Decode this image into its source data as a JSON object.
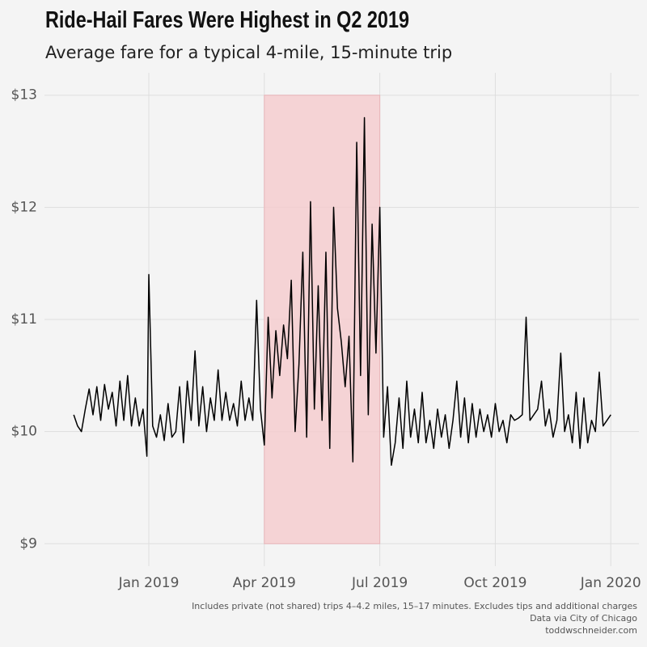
{
  "chart_data": {
    "type": "line",
    "title": "Ride-Hail Fares Were Highest in Q2 2019",
    "subtitle": "Average fare for a typical 4-mile, 15-minute trip",
    "notes": [
      "Includes private (not shared) trips 4–4.2 miles, 15–17 minutes. Excludes tips and additional charges",
      "Data via City of Chicago",
      "toddwschneider.com"
    ],
    "color": "#000000",
    "highlight": {
      "x": [
        3,
        6
      ],
      "color": "#f4cccf"
    },
    "grid": true,
    "xlim": [
      -2.71,
      12.73
    ],
    "xticks": [
      {
        "value": 0,
        "label": "Jan 2019"
      },
      {
        "value": 3,
        "label": "Apr 2019"
      },
      {
        "value": 6,
        "label": "Jul 2019"
      },
      {
        "value": 9,
        "label": "Oct 2019"
      },
      {
        "value": 12,
        "label": "Jan 2020"
      }
    ],
    "ylim": [
      8.8,
      13.2
    ],
    "yticks": [
      {
        "value": 9,
        "label": "$9"
      },
      {
        "value": 10,
        "label": "$10"
      },
      {
        "value": 11,
        "label": "$11"
      },
      {
        "value": 12,
        "label": "$12"
      },
      {
        "value": 13,
        "label": "$13"
      }
    ],
    "x": [
      -1.95,
      -1.85,
      -1.75,
      -1.65,
      -1.55,
      -1.45,
      -1.35,
      -1.25,
      -1.15,
      -1.05,
      -0.95,
      -0.85,
      -0.75,
      -0.65,
      -0.55,
      -0.45,
      -0.35,
      -0.25,
      -0.15,
      -0.05,
      0.0,
      0.1,
      0.2,
      0.3,
      0.4,
      0.5,
      0.6,
      0.7,
      0.8,
      0.9,
      1.0,
      1.1,
      1.2,
      1.3,
      1.4,
      1.5,
      1.6,
      1.7,
      1.8,
      1.9,
      2.0,
      2.1,
      2.2,
      2.3,
      2.4,
      2.5,
      2.6,
      2.7,
      2.8,
      2.9,
      3.0,
      3.1,
      3.2,
      3.3,
      3.4,
      3.5,
      3.6,
      3.7,
      3.8,
      3.9,
      4.0,
      4.1,
      4.2,
      4.3,
      4.4,
      4.5,
      4.6,
      4.7,
      4.8,
      4.9,
      5.0,
      5.1,
      5.2,
      5.3,
      5.4,
      5.5,
      5.6,
      5.7,
      5.8,
      5.9,
      6.0,
      6.1,
      6.2,
      6.3,
      6.4,
      6.5,
      6.6,
      6.7,
      6.8,
      6.9,
      7.0,
      7.1,
      7.2,
      7.3,
      7.4,
      7.5,
      7.6,
      7.7,
      7.8,
      7.9,
      8.0,
      8.1,
      8.2,
      8.3,
      8.4,
      8.5,
      8.6,
      8.7,
      8.8,
      8.9,
      9.0,
      9.1,
      9.2,
      9.3,
      9.4,
      9.5,
      9.6,
      9.7,
      9.8,
      9.9,
      10.0,
      10.1,
      10.2,
      10.3,
      10.4,
      10.5,
      10.6,
      10.7,
      10.8,
      10.9,
      11.0,
      11.1,
      11.2,
      11.3,
      11.4,
      11.5,
      11.6,
      11.7,
      11.8,
      11.9,
      12.0
    ],
    "values": [
      10.15,
      10.05,
      10.0,
      10.2,
      10.38,
      10.15,
      10.4,
      10.1,
      10.42,
      10.2,
      10.35,
      10.05,
      10.45,
      10.1,
      10.5,
      10.05,
      10.3,
      10.05,
      10.2,
      9.78,
      11.4,
      10.05,
      9.95,
      10.15,
      9.92,
      10.25,
      9.95,
      10.0,
      10.4,
      9.9,
      10.45,
      10.1,
      10.72,
      10.05,
      10.4,
      10.0,
      10.3,
      10.1,
      10.55,
      10.1,
      10.35,
      10.1,
      10.25,
      10.05,
      10.45,
      10.1,
      10.3,
      10.1,
      11.17,
      10.2,
      9.88,
      11.02,
      10.3,
      10.9,
      10.5,
      10.95,
      10.65,
      11.35,
      10.0,
      10.6,
      11.6,
      9.95,
      12.05,
      10.2,
      11.3,
      10.1,
      11.6,
      9.85,
      12.0,
      11.1,
      10.8,
      10.4,
      10.85,
      9.73,
      12.58,
      10.5,
      12.8,
      10.15,
      11.85,
      10.7,
      12.0,
      9.95,
      10.4,
      9.7,
      9.9,
      10.3,
      9.85,
      10.45,
      9.95,
      10.2,
      9.9,
      10.35,
      9.9,
      10.1,
      9.85,
      10.2,
      9.95,
      10.15,
      9.85,
      10.1,
      10.45,
      9.95,
      10.3,
      9.9,
      10.25,
      9.95,
      10.2,
      10.0,
      10.15,
      9.95,
      10.25,
      10.0,
      10.1,
      9.9,
      10.15,
      10.1,
      10.12,
      10.15,
      11.02,
      10.1,
      10.15,
      10.2,
      10.45,
      10.05,
      10.2,
      9.95,
      10.1,
      10.7,
      10.0,
      10.15,
      9.9,
      10.35,
      9.85,
      10.3,
      9.9,
      10.1,
      10.0,
      10.53,
      10.05,
      10.1,
      10.15
    ]
  }
}
